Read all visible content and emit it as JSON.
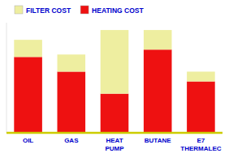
{
  "chart_data": {
    "type": "bar",
    "stacked": true,
    "categories": [
      "OIL",
      "GAS",
      "HEAT\nPUMP",
      "BUTANE",
      "E7\nTHERMALEC"
    ],
    "series": [
      {
        "name": "HEATING COST",
        "color": "#ee1111",
        "values": [
          62,
          50,
          32,
          68,
          42
        ]
      },
      {
        "name": "FILTER COST",
        "color": "#eeeea0",
        "values": [
          14,
          14,
          52,
          16,
          8
        ]
      }
    ],
    "ylim": [
      0,
      90
    ],
    "yticks": [],
    "tick_labels": "x",
    "grid": false,
    "legend": "upper left"
  }
}
